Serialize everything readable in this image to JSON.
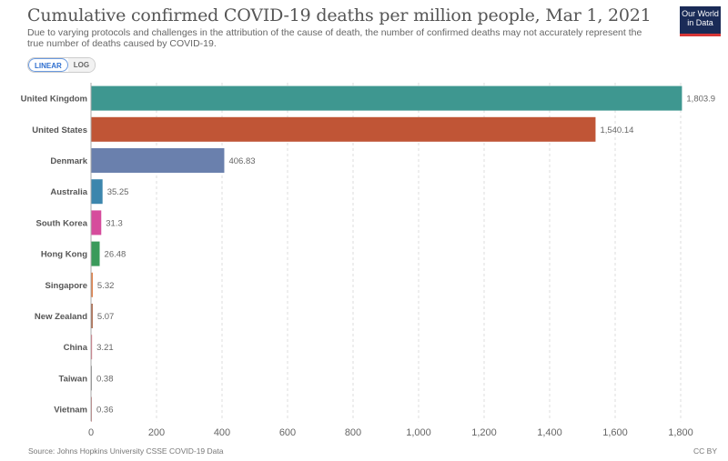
{
  "header": {
    "title": "Cumulative confirmed COVID-19 deaths per million people, Mar 1, 2021",
    "subtitle": "Due to varying protocols and challenges in the attribution of the cause of death, the number of confirmed deaths may not accurately represent the true number of deaths caused by COVID-19.",
    "logo_line1": "Our World",
    "logo_line2": "in Data"
  },
  "scale_toggle": {
    "linear": "LINEAR",
    "log": "LOG",
    "selected": "LINEAR"
  },
  "footer": {
    "source": "Source: Johns Hopkins University CSSE COVID-19 Data",
    "license": "CC BY"
  },
  "chart_data": {
    "type": "bar",
    "orientation": "horizontal",
    "title": "Cumulative confirmed COVID-19 deaths per million people, Mar 1, 2021",
    "xlabel": "",
    "ylabel": "",
    "xlim": [
      0,
      1800
    ],
    "grid": true,
    "categories": [
      "United Kingdom",
      "United States",
      "Denmark",
      "Australia",
      "South Korea",
      "Hong Kong",
      "Singapore",
      "New Zealand",
      "China",
      "Taiwan",
      "Vietnam"
    ],
    "values": [
      1803.9,
      1540.14,
      406.83,
      35.25,
      31.3,
      26.48,
      5.32,
      5.07,
      3.21,
      0.38,
      0.36
    ],
    "value_labels": [
      "1,803.9",
      "1,540.14",
      "406.83",
      "35.25",
      "31.3",
      "26.48",
      "5.32",
      "5.07",
      "3.21",
      "0.38",
      "0.36"
    ],
    "colors": [
      "#3e9790",
      "#c05536",
      "#6a80ad",
      "#3c86ad",
      "#d64c9c",
      "#3a9a5b",
      "#dd7940",
      "#a45b3a",
      "#de6a79",
      "#8a8a8a",
      "#c97a7a"
    ],
    "x_ticks": [
      0,
      200,
      400,
      600,
      800,
      1000,
      1200,
      1400,
      1600,
      1800
    ],
    "x_tick_labels": [
      "0",
      "200",
      "400",
      "600",
      "800",
      "1,000",
      "1,200",
      "1,400",
      "1,600",
      "1,800"
    ]
  }
}
